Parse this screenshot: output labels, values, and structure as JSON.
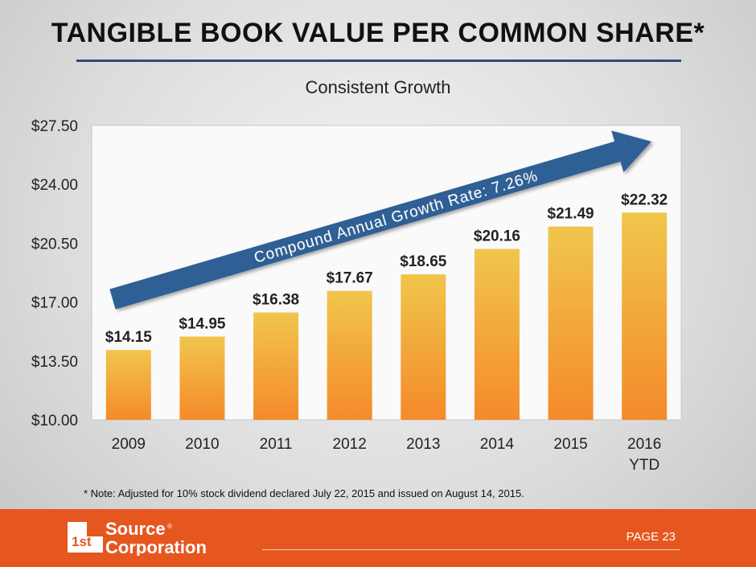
{
  "slide": {
    "title": "TANGIBLE BOOK VALUE PER COMMON SHARE*",
    "note": "* Note: Adjusted for 10% stock dividend declared July 22, 2015 and issued on August 14, 2015.",
    "page": "PAGE 23"
  },
  "logo": {
    "mark": "1st",
    "line1": "Source",
    "line2": "Corporation",
    "registered": "®"
  },
  "colors": {
    "accent_blue": "#2e4a78",
    "arrow_blue": "#2f5f95",
    "bar_top": "#f0c64c",
    "bar_bottom": "#f58a2a",
    "footer_orange": "#e5571f"
  },
  "chart_data": {
    "type": "bar",
    "title": "Consistent Growth",
    "categories": [
      [
        "2009"
      ],
      [
        "2010"
      ],
      [
        "2011"
      ],
      [
        "2012"
      ],
      [
        "2013"
      ],
      [
        "2014"
      ],
      [
        "2015"
      ],
      [
        "2016",
        "YTD"
      ]
    ],
    "values": [
      14.15,
      14.95,
      16.38,
      17.67,
      18.65,
      20.16,
      21.49,
      22.32
    ],
    "value_labels": [
      "$14.15",
      "$14.95",
      "$16.38",
      "$17.67",
      "$18.65",
      "$20.16",
      "$21.49",
      "$22.32"
    ],
    "ylim": [
      10,
      27.5
    ],
    "yticks": [
      10,
      13.5,
      17,
      20.5,
      24,
      27.5
    ],
    "ytick_labels": [
      "$10.00",
      "$13.50",
      "$17.00",
      "$20.50",
      "$24.00",
      "$27.50"
    ],
    "xlabel": "",
    "ylabel": "",
    "grid": false,
    "annotation": "Compound Annual Growth Rate: 7.26%"
  }
}
